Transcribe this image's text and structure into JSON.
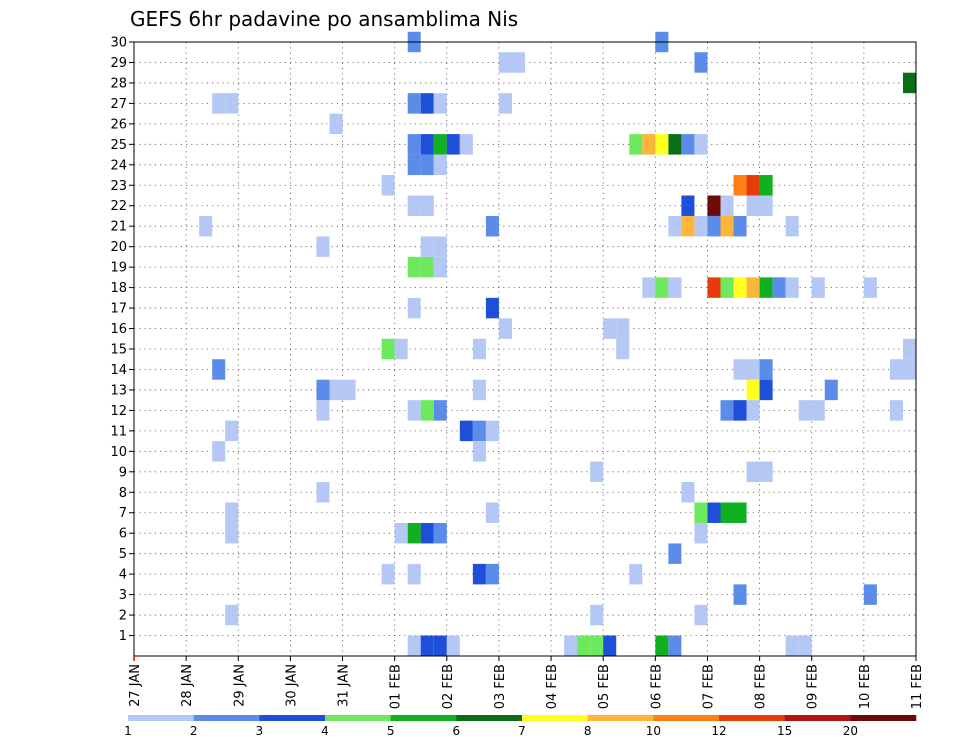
{
  "chart_data": {
    "type": "heatmap",
    "title": "GEFS 6hr padavine po ansamblima Nis",
    "xlabel": "",
    "ylabel": "",
    "x_tick_labels": [
      "27 JAN",
      "28 JAN",
      "29 JAN",
      "30 JAN",
      "31 JAN",
      "01 FEB",
      "02 FEB",
      "03 FEB",
      "04 FEB",
      "05 FEB",
      "06 FEB",
      "07 FEB",
      "08 FEB",
      "09 FEB",
      "10 FEB",
      "11 FEB"
    ],
    "y_tick_labels": [
      "1",
      "2",
      "3",
      "4",
      "5",
      "6",
      "7",
      "8",
      "9",
      "10",
      "11",
      "12",
      "13",
      "14",
      "15",
      "16",
      "17",
      "18",
      "19",
      "20",
      "21",
      "22",
      "23",
      "24",
      "25",
      "26",
      "27",
      "28",
      "29",
      "30"
    ],
    "x_unit": "6-hour steps from 27 JAN 00Z (4 per day)",
    "x_range": [
      0,
      60
    ],
    "ylim": [
      0,
      30
    ],
    "grid": true,
    "legend_position": "bottom",
    "colorbar": {
      "labels": [
        "1",
        "2",
        "3",
        "4",
        "5",
        "6",
        "7",
        "8",
        "10",
        "12",
        "15",
        "20"
      ],
      "colors": [
        "#b4c7f5",
        "#5b8cea",
        "#1e4fd8",
        "#6ee85c",
        "#10b020",
        "#0a6e14",
        "#ffff20",
        "#ffb43c",
        "#ff7f14",
        "#e63c0a",
        "#b41414",
        "#6e0a0a"
      ]
    },
    "cells": [
      [
        21.5,
        30,
        2
      ],
      [
        40.5,
        30,
        2
      ],
      [
        28.5,
        29,
        1
      ],
      [
        29.5,
        29,
        1
      ],
      [
        43.5,
        29,
        2
      ],
      [
        59.5,
        28,
        6
      ],
      [
        6.5,
        27,
        1
      ],
      [
        7.5,
        27,
        1
      ],
      [
        21.5,
        27,
        2
      ],
      [
        22.5,
        27,
        3
      ],
      [
        23.5,
        27,
        1
      ],
      [
        28.5,
        27,
        1
      ],
      [
        15.5,
        26,
        1
      ],
      [
        21.5,
        25,
        2
      ],
      [
        22.5,
        25,
        3
      ],
      [
        23.5,
        25,
        5
      ],
      [
        24.5,
        25,
        3
      ],
      [
        25.5,
        25,
        1
      ],
      [
        38.5,
        25,
        4
      ],
      [
        39.5,
        25,
        8
      ],
      [
        40.5,
        25,
        7
      ],
      [
        41.5,
        25,
        6
      ],
      [
        42.5,
        25,
        2
      ],
      [
        43.5,
        25,
        1
      ],
      [
        21.5,
        24,
        2
      ],
      [
        22.5,
        24,
        2
      ],
      [
        23.5,
        24,
        1
      ],
      [
        19.5,
        23,
        1
      ],
      [
        46.5,
        23,
        9
      ],
      [
        47.5,
        23,
        10
      ],
      [
        48.5,
        23,
        5
      ],
      [
        21.5,
        22,
        1
      ],
      [
        22.5,
        22,
        1
      ],
      [
        42.5,
        22,
        3
      ],
      [
        44.5,
        22,
        12
      ],
      [
        45.5,
        22,
        1
      ],
      [
        47.5,
        22,
        1
      ],
      [
        48.5,
        22,
        1
      ],
      [
        5.5,
        21,
        1
      ],
      [
        27.5,
        21,
        2
      ],
      [
        41.5,
        21,
        1
      ],
      [
        42.5,
        21,
        8
      ],
      [
        43.5,
        21,
        1
      ],
      [
        44.5,
        21,
        2
      ],
      [
        45.5,
        21,
        8
      ],
      [
        46.5,
        21,
        2
      ],
      [
        50.5,
        21,
        1
      ],
      [
        14.5,
        20,
        1
      ],
      [
        22.5,
        20,
        1
      ],
      [
        23.5,
        20,
        1
      ],
      [
        21.5,
        19,
        4
      ],
      [
        22.5,
        19,
        4
      ],
      [
        23.5,
        19,
        1
      ],
      [
        39.5,
        18,
        1
      ],
      [
        40.5,
        18,
        4
      ],
      [
        41.5,
        18,
        1
      ],
      [
        44.5,
        18,
        10
      ],
      [
        45.5,
        18,
        4
      ],
      [
        46.5,
        18,
        7
      ],
      [
        47.5,
        18,
        8
      ],
      [
        48.5,
        18,
        5
      ],
      [
        49.5,
        18,
        2
      ],
      [
        50.5,
        18,
        1
      ],
      [
        52.5,
        18,
        1
      ],
      [
        56.5,
        18,
        1
      ],
      [
        21.5,
        17,
        1
      ],
      [
        27.5,
        17,
        3
      ],
      [
        28.5,
        16,
        1
      ],
      [
        36.5,
        16,
        1
      ],
      [
        37.5,
        16,
        1
      ],
      [
        19.5,
        15,
        4
      ],
      [
        20.5,
        15,
        1
      ],
      [
        26.5,
        15,
        1
      ],
      [
        37.5,
        15,
        1
      ],
      [
        59.5,
        15,
        1
      ],
      [
        6.5,
        14,
        2
      ],
      [
        46.5,
        14,
        1
      ],
      [
        47.5,
        14,
        1
      ],
      [
        48.5,
        14,
        2
      ],
      [
        58.5,
        14,
        1
      ],
      [
        59.5,
        14,
        1
      ],
      [
        14.5,
        13,
        2
      ],
      [
        15.5,
        13,
        1
      ],
      [
        16.5,
        13,
        1
      ],
      [
        26.5,
        13,
        1
      ],
      [
        47.5,
        13,
        7
      ],
      [
        48.5,
        13,
        3
      ],
      [
        53.5,
        13,
        2
      ],
      [
        14.5,
        12,
        1
      ],
      [
        21.5,
        12,
        1
      ],
      [
        22.5,
        12,
        4
      ],
      [
        23.5,
        12,
        2
      ],
      [
        45.5,
        12,
        2
      ],
      [
        46.5,
        12,
        3
      ],
      [
        47.5,
        12,
        1
      ],
      [
        51.5,
        12,
        1
      ],
      [
        52.5,
        12,
        1
      ],
      [
        58.5,
        12,
        1
      ],
      [
        7.5,
        11,
        1
      ],
      [
        25.5,
        11,
        3
      ],
      [
        26.5,
        11,
        2
      ],
      [
        27.5,
        11,
        1
      ],
      [
        6.5,
        10,
        1
      ],
      [
        26.5,
        10,
        1
      ],
      [
        35.5,
        9,
        1
      ],
      [
        47.5,
        9,
        1
      ],
      [
        48.5,
        9,
        1
      ],
      [
        14.5,
        8,
        1
      ],
      [
        42.5,
        8,
        1
      ],
      [
        7.5,
        7,
        1
      ],
      [
        27.5,
        7,
        1
      ],
      [
        43.5,
        7,
        4
      ],
      [
        44.5,
        7,
        3
      ],
      [
        45.5,
        7,
        5
      ],
      [
        46.5,
        7,
        5
      ],
      [
        7.5,
        6,
        1
      ],
      [
        20.5,
        6,
        1
      ],
      [
        21.5,
        6,
        5
      ],
      [
        22.5,
        6,
        3
      ],
      [
        23.5,
        6,
        2
      ],
      [
        43.5,
        6,
        1
      ],
      [
        41.5,
        5,
        2
      ],
      [
        19.5,
        4,
        1
      ],
      [
        21.5,
        4,
        1
      ],
      [
        26.5,
        4,
        3
      ],
      [
        27.5,
        4,
        2
      ],
      [
        38.5,
        4,
        1
      ],
      [
        46.5,
        3,
        2
      ],
      [
        56.5,
        3,
        2
      ],
      [
        7.5,
        2,
        1
      ],
      [
        35.5,
        2,
        1
      ],
      [
        43.5,
        2,
        1
      ],
      [
        21.5,
        0.5,
        1
      ],
      [
        22.5,
        0.5,
        3
      ],
      [
        23.5,
        0.5,
        3
      ],
      [
        24.5,
        0.5,
        1
      ],
      [
        33.5,
        0.5,
        1
      ],
      [
        34.5,
        0.5,
        4
      ],
      [
        35.5,
        0.5,
        4
      ],
      [
        36.5,
        0.5,
        3
      ],
      [
        40.5,
        0.5,
        5
      ],
      [
        41.5,
        0.5,
        2
      ],
      [
        50.5,
        0.5,
        1
      ],
      [
        51.5,
        0.5,
        1
      ]
    ]
  }
}
